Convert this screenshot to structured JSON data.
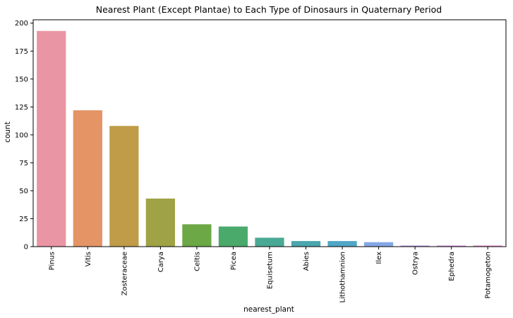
{
  "chart_data": {
    "type": "bar",
    "title": "Nearest Plant (Except Plantae) to Each Type of Dinosaurs in Quaternary Period",
    "xlabel": "nearest_plant",
    "ylabel": "count",
    "ylim": [
      0,
      203
    ],
    "yticks": [
      0,
      25,
      50,
      75,
      100,
      125,
      150,
      175,
      200
    ],
    "grid": false,
    "categories": [
      "Pinus",
      "Vitis",
      "Zosteraceae",
      "Carya",
      "Celtis",
      "Picea",
      "Equisetum",
      "Abies",
      "Lithothamnion",
      "Ilex",
      "Ostrya",
      "Ephedra",
      "Potamogeton"
    ],
    "values": [
      193,
      122,
      108,
      43,
      20,
      18,
      8,
      5,
      5,
      4,
      1,
      1,
      1
    ],
    "colors": [
      "#ea95a3",
      "#e49465",
      "#c09c48",
      "#9fa346",
      "#6da847",
      "#4aaa6b",
      "#4aa994",
      "#4ba6ad",
      "#4fa6c7",
      "#84a8e6",
      "#b69ee9",
      "#d98ce4",
      "#e68bc9"
    ]
  }
}
